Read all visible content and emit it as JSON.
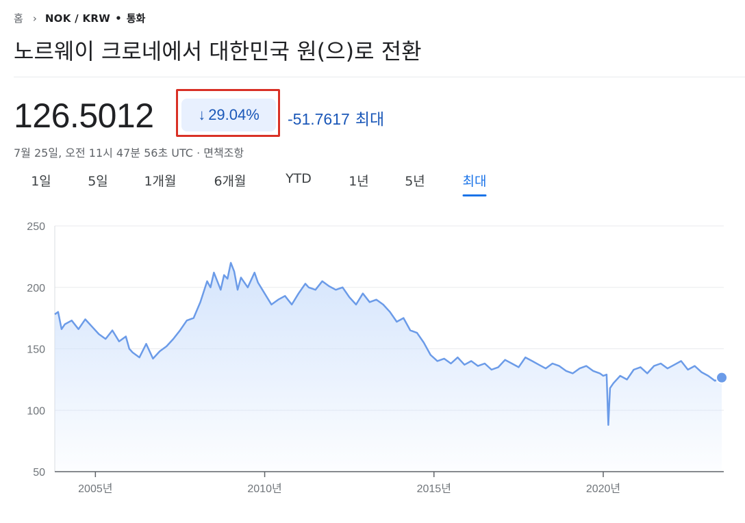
{
  "breadcrumb": {
    "home": "홈",
    "symbol": "NOK / KRW",
    "type": "통화"
  },
  "title": "노르웨이 크로네에서 대한민국 원(으)로 전환",
  "price": "126.5012",
  "change": {
    "percent": "29.04%",
    "direction": "down",
    "absolute": "-51.7617",
    "period": "최대",
    "color": "#1a57b8"
  },
  "timestamp": "7월 25일, 오전 11시 47분 56초 UTC · 면책조항",
  "range_tabs": [
    {
      "label": "1일",
      "active": false
    },
    {
      "label": "5일",
      "active": false
    },
    {
      "label": "1개월",
      "active": false
    },
    {
      "label": "6개월",
      "active": false
    },
    {
      "label": "YTD",
      "active": false
    },
    {
      "label": "1년",
      "active": false
    },
    {
      "label": "5년",
      "active": false
    },
    {
      "label": "최대",
      "active": true
    }
  ],
  "chart_data": {
    "type": "area",
    "title": "",
    "xlabel": "",
    "ylabel": "",
    "ylim": [
      50,
      250
    ],
    "xlim": [
      2003.8,
      2023.56
    ],
    "yticks": [
      250,
      200,
      150,
      100,
      50
    ],
    "xticks": [
      {
        "value": 2005,
        "label": "2005년"
      },
      {
        "value": 2010,
        "label": "2010년"
      },
      {
        "value": 2015,
        "label": "2015년"
      },
      {
        "value": 2020,
        "label": "2020년"
      }
    ],
    "grid": true,
    "line_color": "#6b9be8",
    "fill_color": "#d2e3fc",
    "series": [
      {
        "x": [
          2003.8,
          2003.9,
          2004.0,
          2004.1,
          2004.3,
          2004.5,
          2004.7,
          2004.9,
          2005.1,
          2005.3,
          2005.5,
          2005.7,
          2005.9,
          2006.0,
          2006.1,
          2006.3,
          2006.5,
          2006.7,
          2006.9,
          2007.1,
          2007.3,
          2007.5,
          2007.7,
          2007.9,
          2008.1,
          2008.3,
          2008.4,
          2008.5,
          2008.7,
          2008.8,
          2008.9,
          2009.0,
          2009.1,
          2009.2,
          2009.3,
          2009.5,
          2009.7,
          2009.8,
          2010.0,
          2010.2,
          2010.4,
          2010.6,
          2010.8,
          2011.0,
          2011.2,
          2011.3,
          2011.5,
          2011.7,
          2011.9,
          2012.1,
          2012.3,
          2012.5,
          2012.7,
          2012.9,
          2013.1,
          2013.3,
          2013.5,
          2013.7,
          2013.9,
          2014.1,
          2014.3,
          2014.5,
          2014.7,
          2014.9,
          2015.1,
          2015.3,
          2015.5,
          2015.7,
          2015.9,
          2016.1,
          2016.3,
          2016.5,
          2016.7,
          2016.9,
          2017.1,
          2017.3,
          2017.5,
          2017.7,
          2017.9,
          2018.1,
          2018.3,
          2018.5,
          2018.7,
          2018.9,
          2019.1,
          2019.3,
          2019.5,
          2019.7,
          2019.9,
          2020.0,
          2020.1,
          2020.15,
          2020.2,
          2020.3,
          2020.5,
          2020.7,
          2020.9,
          2021.1,
          2021.3,
          2021.5,
          2021.7,
          2021.9,
          2022.1,
          2022.3,
          2022.5,
          2022.7,
          2022.9,
          2023.1,
          2023.3,
          2023.5
        ],
        "y": [
          178,
          180,
          166,
          170,
          173,
          166,
          174,
          168,
          162,
          158,
          165,
          156,
          160,
          150,
          147,
          143,
          154,
          142,
          148,
          152,
          158,
          165,
          173,
          175,
          188,
          205,
          200,
          212,
          198,
          210,
          207,
          220,
          213,
          198,
          208,
          200,
          212,
          204,
          195,
          186,
          190,
          193,
          186,
          195,
          203,
          200,
          198,
          205,
          201,
          198,
          200,
          192,
          186,
          195,
          188,
          190,
          186,
          180,
          172,
          175,
          165,
          163,
          155,
          145,
          140,
          142,
          138,
          143,
          137,
          140,
          136,
          138,
          133,
          135,
          141,
          138,
          135,
          143,
          140,
          137,
          134,
          138,
          136,
          132,
          130,
          134,
          136,
          132,
          130,
          128,
          129,
          88,
          118,
          122,
          128,
          125,
          133,
          135,
          130,
          136,
          138,
          134,
          137,
          140,
          133,
          136,
          131,
          128,
          124,
          126.5
        ]
      }
    ]
  }
}
